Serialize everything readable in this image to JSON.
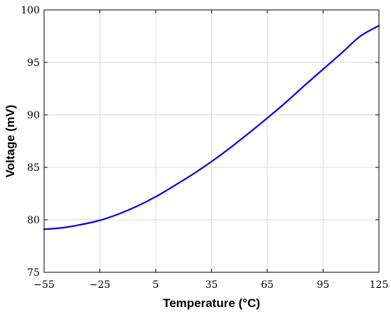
{
  "chart_data": {
    "type": "line",
    "xlabel": "Temperature (°C)",
    "ylabel": "Voltage (mV)",
    "xlim": [
      -55,
      125
    ],
    "ylim": [
      75,
      100
    ],
    "xticks": [
      -55,
      -25,
      5,
      35,
      65,
      95,
      125
    ],
    "xtick_labels": [
      "−55",
      "−25",
      "5",
      "35",
      "65",
      "95",
      "125"
    ],
    "yticks": [
      75,
      80,
      85,
      90,
      95,
      100
    ],
    "ytick_labels": [
      "75",
      "80",
      "85",
      "90",
      "95",
      "100"
    ],
    "grid": true,
    "series": [
      {
        "color": "#0000ee",
        "x": [
          -55,
          -45,
          -35,
          -25,
          -15,
          -5,
          5,
          15,
          25,
          35,
          45,
          55,
          65,
          75,
          85,
          95,
          105,
          115,
          125
        ],
        "y": [
          79.1,
          79.25,
          79.55,
          79.95,
          80.55,
          81.3,
          82.2,
          83.25,
          84.35,
          85.55,
          86.85,
          88.25,
          89.7,
          91.2,
          92.8,
          94.35,
          95.9,
          97.5,
          98.5
        ]
      }
    ]
  }
}
